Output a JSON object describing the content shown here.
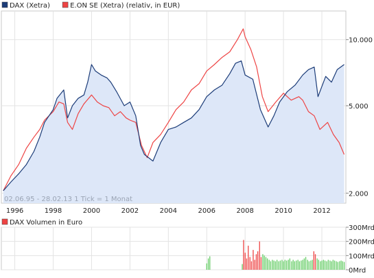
{
  "chart_data": [
    {
      "type": "line",
      "title": "",
      "legend": {
        "placement": "top-left",
        "entries": [
          {
            "name": "DAX (Xetra)",
            "color": "#1c3c78"
          },
          {
            "name": "E.ON SE (Xetra) (relativ, in EUR)",
            "color": "#ee4444"
          }
        ]
      },
      "y_scale": "log",
      "ylim": [
        1800,
        13500
      ],
      "y_ticks": [
        {
          "value": 2000,
          "label": "2.000"
        },
        {
          "value": 5000,
          "label": "5.000"
        },
        {
          "value": 10000,
          "label": "10.000"
        }
      ],
      "xlim": [
        1995.3,
        2013.25
      ],
      "x_ticks": [
        {
          "value": 1996,
          "label": "1996"
        },
        {
          "value": 1998,
          "label": "1998"
        },
        {
          "value": 2000,
          "label": "2000"
        },
        {
          "value": 2002,
          "label": "2002"
        },
        {
          "value": 2004,
          "label": "2004"
        },
        {
          "value": 2006,
          "label": "2006"
        },
        {
          "value": 2008,
          "label": "2008"
        },
        {
          "value": 2010,
          "label": "2010"
        },
        {
          "value": 2012,
          "label": "2012"
        }
      ],
      "grid": true,
      "annotation": "02.06.95 - 28.02.13   1 Tick = 1 Monat",
      "series": [
        {
          "name": "DAX (Xetra)",
          "color": "#1c3c78",
          "fill": "#dde7f8",
          "x": [
            1995.4,
            1995.8,
            1996.2,
            1996.6,
            1997.0,
            1997.3,
            1997.55,
            1998.0,
            1998.2,
            1998.55,
            1998.75,
            1999.0,
            1999.3,
            1999.6,
            1999.8,
            2000.0,
            2000.2,
            2000.5,
            2000.8,
            2001.0,
            2001.3,
            2001.7,
            2002.0,
            2002.3,
            2002.55,
            2002.75,
            2003.2,
            2003.6,
            2004.0,
            2004.4,
            2004.8,
            2005.2,
            2005.6,
            2006.0,
            2006.4,
            2006.8,
            2007.2,
            2007.5,
            2007.8,
            2008.0,
            2008.4,
            2008.8,
            2009.2,
            2009.5,
            2009.8,
            2010.2,
            2010.6,
            2011.0,
            2011.3,
            2011.6,
            2011.8,
            2012.2,
            2012.5,
            2012.8,
            2013.16
          ],
          "values": [
            2050,
            2250,
            2450,
            2700,
            3100,
            3600,
            4200,
            4800,
            5400,
            5900,
            4400,
            5000,
            5400,
            5600,
            6400,
            7700,
            7200,
            6900,
            6700,
            6400,
            5800,
            5000,
            5200,
            4500,
            3300,
            3000,
            2800,
            3400,
            3900,
            4000,
            4200,
            4400,
            4800,
            5500,
            5900,
            6200,
            7000,
            7800,
            8000,
            6900,
            6600,
            4800,
            4000,
            4500,
            5200,
            5800,
            6200,
            6900,
            7300,
            7500,
            5500,
            6800,
            6400,
            7300,
            7700
          ]
        },
        {
          "name": "E.ON SE (Xetra) (relativ, in EUR)",
          "color": "#ee4444",
          "x": [
            1995.4,
            1995.8,
            1996.2,
            1996.6,
            1997.0,
            1997.3,
            1997.55,
            1998.0,
            1998.3,
            1998.55,
            1998.75,
            1999.0,
            1999.3,
            1999.6,
            2000.0,
            2000.3,
            2000.6,
            2000.9,
            2001.2,
            2001.5,
            2001.8,
            2002.0,
            2002.3,
            2002.6,
            2002.9,
            2003.2,
            2003.6,
            2004.0,
            2004.4,
            2004.8,
            2005.2,
            2005.6,
            2006.0,
            2006.4,
            2006.8,
            2007.2,
            2007.6,
            2007.9,
            2008.0,
            2008.3,
            2008.6,
            2008.9,
            2009.2,
            2009.6,
            2010.0,
            2010.4,
            2010.8,
            2011.0,
            2011.3,
            2011.6,
            2011.9,
            2012.3,
            2012.6,
            2012.9,
            2013.16
          ],
          "values": [
            2050,
            2400,
            2700,
            3200,
            3600,
            3900,
            4300,
            4700,
            5200,
            5100,
            4200,
            3900,
            4600,
            5100,
            5600,
            5200,
            5000,
            4900,
            4500,
            4700,
            4400,
            4300,
            4200,
            3300,
            2900,
            3400,
            3700,
            4200,
            4800,
            5200,
            5900,
            6300,
            7200,
            7700,
            8300,
            8800,
            10000,
            11200,
            10300,
            9000,
            7500,
            5500,
            4700,
            5200,
            5700,
            5300,
            5500,
            5300,
            4700,
            4500,
            3900,
            4200,
            3700,
            3400,
            3000
          ]
        }
      ]
    },
    {
      "type": "bar",
      "title": "",
      "legend": {
        "placement": "top-left",
        "entries": [
          {
            "name": "DAX Volumen in Euro",
            "color": "#ee4444"
          }
        ]
      },
      "ylim": [
        0,
        300
      ],
      "y_ticks": [
        {
          "value": 0,
          "label": "0Mrd"
        },
        {
          "value": 100,
          "label": "100Mrd"
        },
        {
          "value": 200,
          "label": "200Mrd"
        },
        {
          "value": 300,
          "label": "300Mrd"
        }
      ],
      "xlim": [
        1995.3,
        2013.25
      ],
      "grid": true,
      "series": [
        {
          "name": "DAX Volumen in Euro",
          "up_color": "#66cc66",
          "down_color": "#ee4444",
          "x": [
            2006.0,
            2006.08,
            2006.16,
            2007.85,
            2007.92,
            2008.0,
            2008.08,
            2008.16,
            2008.25,
            2008.33,
            2008.42,
            2008.5,
            2008.58,
            2008.66,
            2008.75,
            2008.83,
            2008.92,
            2009.0,
            2009.08,
            2009.16,
            2009.25,
            2009.33,
            2009.42,
            2009.5,
            2009.58,
            2009.66,
            2009.75,
            2009.83,
            2009.92,
            2010.0,
            2010.08,
            2010.16,
            2010.25,
            2010.33,
            2010.42,
            2010.5,
            2010.58,
            2010.66,
            2010.75,
            2010.83,
            2010.92,
            2011.0,
            2011.08,
            2011.16,
            2011.25,
            2011.33,
            2011.42,
            2011.5,
            2011.58,
            2011.66,
            2011.75,
            2011.83,
            2011.92,
            2012.0,
            2012.08,
            2012.16,
            2012.25,
            2012.33,
            2012.42,
            2012.5,
            2012.58,
            2012.66,
            2012.75,
            2012.83,
            2012.92,
            2013.0,
            2013.08,
            2013.16
          ],
          "values": [
            45,
            80,
            95,
            40,
            210,
            120,
            80,
            170,
            90,
            60,
            140,
            70,
            110,
            130,
            200,
            90,
            110,
            100,
            90,
            80,
            70,
            60,
            70,
            65,
            60,
            70,
            60,
            65,
            70,
            60,
            70,
            65,
            70,
            80,
            60,
            70,
            60,
            65,
            70,
            60,
            65,
            70,
            80,
            90,
            70,
            60,
            65,
            70,
            130,
            110,
            80,
            70,
            60,
            65,
            70,
            65,
            60,
            70,
            65,
            60,
            70,
            65,
            60,
            55,
            60,
            65,
            60,
            55
          ],
          "up": [
            true,
            true,
            true,
            true,
            false,
            false,
            false,
            false,
            false,
            false,
            false,
            false,
            false,
            false,
            false,
            false,
            true,
            true,
            true,
            true,
            true,
            true,
            true,
            true,
            true,
            true,
            true,
            true,
            true,
            true,
            true,
            true,
            true,
            true,
            true,
            true,
            true,
            true,
            true,
            true,
            true,
            true,
            true,
            true,
            true,
            true,
            true,
            true,
            false,
            false,
            true,
            true,
            true,
            true,
            true,
            true,
            true,
            true,
            true,
            true,
            true,
            true,
            true,
            true,
            true,
            true,
            true,
            true
          ]
        }
      ]
    }
  ]
}
